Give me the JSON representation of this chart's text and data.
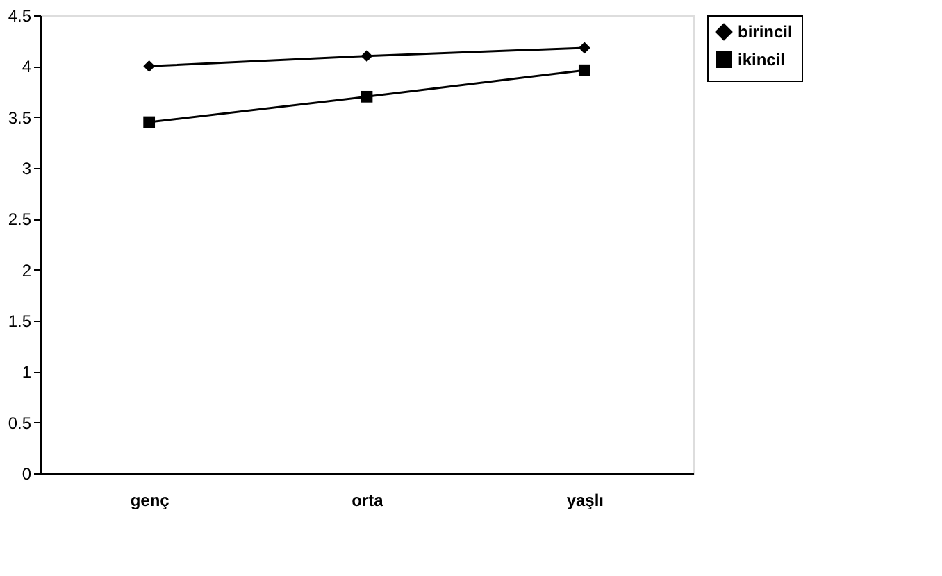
{
  "chart_data": {
    "type": "line",
    "categories": [
      "genç",
      "orta",
      "yaşlı"
    ],
    "series": [
      {
        "name": "birincil",
        "color": "#000000",
        "marker": "diamond",
        "values": [
          4.0,
          4.1,
          4.18
        ]
      },
      {
        "name": "ikincil",
        "color": "#000000",
        "marker": "square",
        "values": [
          3.45,
          3.7,
          3.96
        ]
      }
    ],
    "ylim": [
      0,
      4.5
    ],
    "yticks": [
      0,
      0.5,
      1,
      1.5,
      2,
      2.5,
      3,
      3.5,
      4,
      4.5
    ],
    "grid": false,
    "legend": "right",
    "line_style": "solid"
  }
}
